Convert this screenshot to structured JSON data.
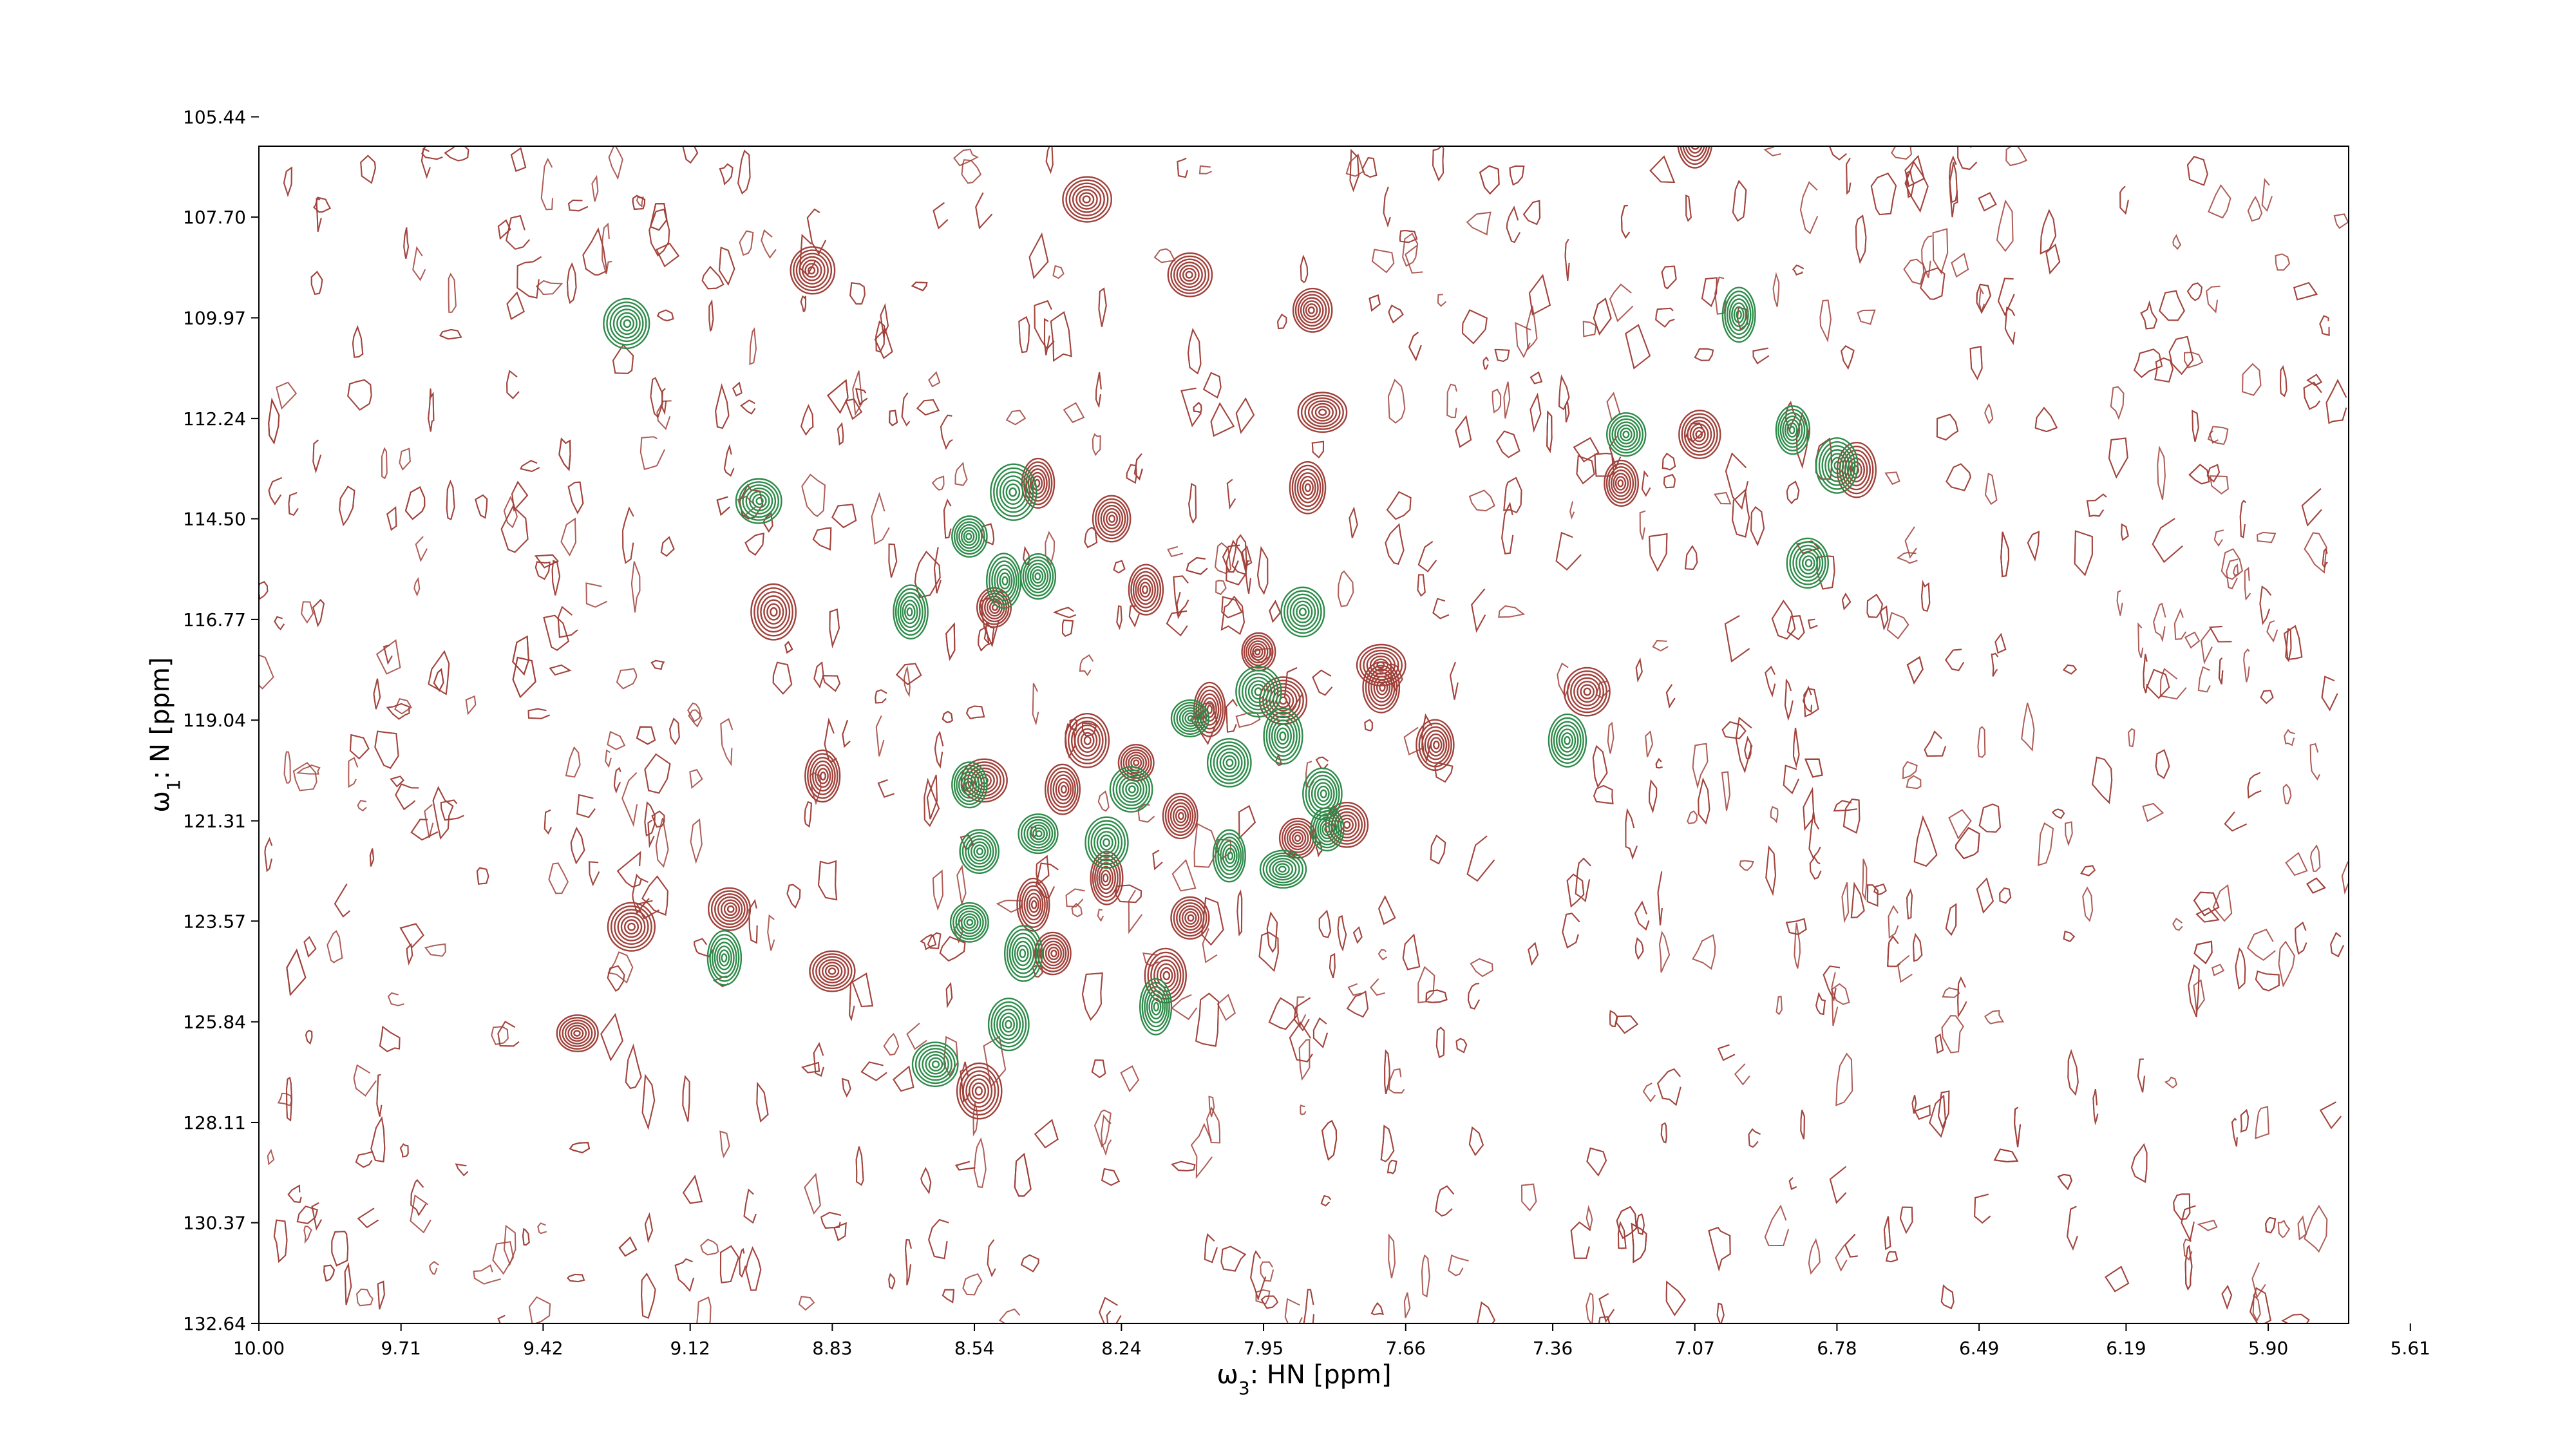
{
  "chart_data": {
    "type": "contour",
    "title": "",
    "xlabel": {
      "symbol": "ω",
      "sub": "3",
      "text": ": HN [ppm]"
    },
    "ylabel": {
      "symbol": "ω",
      "sub": "1",
      "text": ": N [ppm]"
    },
    "xlim": [
      10.0,
      5.45
    ],
    "ylim": [
      132.64,
      103.3
    ],
    "x_reversed": true,
    "y_reversed": true,
    "grid": false,
    "legend": "none",
    "xticks": [
      "10.00",
      "9.71",
      "9.42",
      "9.12",
      "8.83",
      "8.54",
      "8.24",
      "7.95",
      "7.66",
      "7.36",
      "7.07",
      "6.78",
      "6.49",
      "6.19",
      "5.90",
      "5.61"
    ],
    "yticks": [
      "105.44",
      "107.70",
      "109.97",
      "112.24",
      "114.50",
      "116.77",
      "119.04",
      "121.31",
      "123.57",
      "125.84",
      "128.11",
      "130.37",
      "132.64"
    ],
    "series": [
      {
        "color": "#a0413a",
        "peaks": [
          {
            "x": 7.07,
            "y": 106.0
          },
          {
            "x": 8.31,
            "y": 107.3
          },
          {
            "x": 8.87,
            "y": 108.9
          },
          {
            "x": 8.1,
            "y": 109.0
          },
          {
            "x": 7.83,
            "y": 112.1
          },
          {
            "x": 7.86,
            "y": 113.8
          },
          {
            "x": 8.41,
            "y": 113.7
          },
          {
            "x": 8.26,
            "y": 114.5
          },
          {
            "x": 8.5,
            "y": 116.5
          },
          {
            "x": 8.95,
            "y": 116.6
          },
          {
            "x": 8.19,
            "y": 116.1
          },
          {
            "x": 7.22,
            "y": 113.7
          },
          {
            "x": 6.74,
            "y": 113.4
          },
          {
            "x": 7.06,
            "y": 112.6
          },
          {
            "x": 7.85,
            "y": 109.8
          },
          {
            "x": 7.96,
            "y": 117.5
          },
          {
            "x": 7.71,
            "y": 118.3
          },
          {
            "x": 7.29,
            "y": 118.4
          },
          {
            "x": 7.6,
            "y": 119.6
          },
          {
            "x": 8.31,
            "y": 119.5
          },
          {
            "x": 8.21,
            "y": 120.0
          },
          {
            "x": 8.06,
            "y": 118.8
          },
          {
            "x": 7.91,
            "y": 118.6
          },
          {
            "x": 8.36,
            "y": 120.6
          },
          {
            "x": 8.52,
            "y": 120.4
          },
          {
            "x": 8.12,
            "y": 121.2
          },
          {
            "x": 7.88,
            "y": 121.7
          },
          {
            "x": 7.78,
            "y": 121.4
          },
          {
            "x": 8.27,
            "y": 122.6
          },
          {
            "x": 8.1,
            "y": 123.5
          },
          {
            "x": 8.42,
            "y": 123.2
          },
          {
            "x": 8.85,
            "y": 120.3
          },
          {
            "x": 9.04,
            "y": 123.3
          },
          {
            "x": 9.24,
            "y": 123.7
          },
          {
            "x": 8.83,
            "y": 124.7
          },
          {
            "x": 9.35,
            "y": 126.1
          },
          {
            "x": 8.53,
            "y": 127.4
          },
          {
            "x": 8.38,
            "y": 124.3
          },
          {
            "x": 8.15,
            "y": 124.8
          },
          {
            "x": 7.71,
            "y": 117.8
          }
        ]
      },
      {
        "color": "#2e8b4a",
        "peaks": [
          {
            "x": 9.25,
            "y": 110.1
          },
          {
            "x": 6.98,
            "y": 109.9
          },
          {
            "x": 7.21,
            "y": 112.6
          },
          {
            "x": 6.87,
            "y": 112.5
          },
          {
            "x": 6.78,
            "y": 113.3
          },
          {
            "x": 8.55,
            "y": 114.9
          },
          {
            "x": 8.46,
            "y": 113.9
          },
          {
            "x": 8.98,
            "y": 114.1
          },
          {
            "x": 8.41,
            "y": 115.8
          },
          {
            "x": 8.48,
            "y": 115.9
          },
          {
            "x": 8.67,
            "y": 116.6
          },
          {
            "x": 7.87,
            "y": 116.6
          },
          {
            "x": 7.96,
            "y": 118.4
          },
          {
            "x": 7.91,
            "y": 119.4
          },
          {
            "x": 7.33,
            "y": 119.5
          },
          {
            "x": 8.1,
            "y": 119.0
          },
          {
            "x": 8.02,
            "y": 120.0
          },
          {
            "x": 8.55,
            "y": 120.5
          },
          {
            "x": 8.22,
            "y": 120.6
          },
          {
            "x": 8.41,
            "y": 121.6
          },
          {
            "x": 8.02,
            "y": 122.1
          },
          {
            "x": 7.83,
            "y": 120.7
          },
          {
            "x": 7.91,
            "y": 122.4
          },
          {
            "x": 8.53,
            "y": 122.0
          },
          {
            "x": 8.27,
            "y": 121.8
          },
          {
            "x": 8.44,
            "y": 124.3
          },
          {
            "x": 8.17,
            "y": 125.5
          },
          {
            "x": 8.47,
            "y": 125.9
          },
          {
            "x": 8.62,
            "y": 126.8
          },
          {
            "x": 8.55,
            "y": 123.6
          },
          {
            "x": 9.05,
            "y": 124.4
          },
          {
            "x": 7.82,
            "y": 121.5
          },
          {
            "x": 6.84,
            "y": 115.5
          }
        ]
      }
    ]
  }
}
